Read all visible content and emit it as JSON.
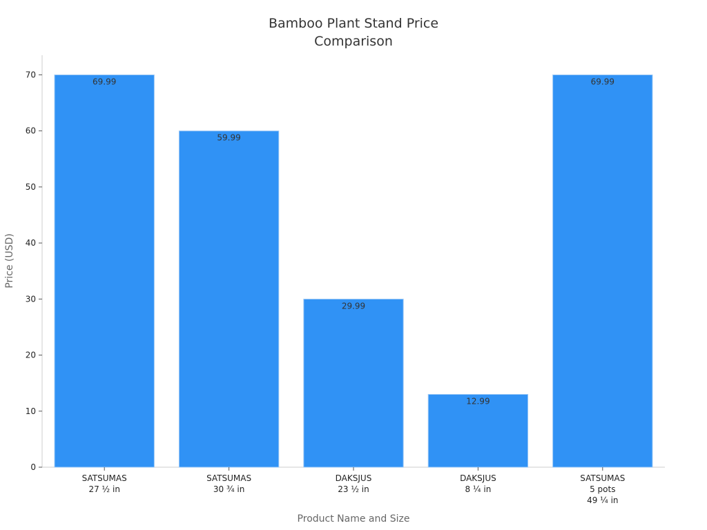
{
  "chart_data": {
    "type": "bar",
    "title": "Bamboo Plant Stand Price\nComparison",
    "x_label": "Product Name and Size",
    "y_label": "Price (USD)",
    "categories": [
      "SATSUMAS\n27 ½ in",
      "SATSUMAS\n30 ¾ in",
      "DAKSJUS\n23 ½ in",
      "DAKSJUS\n8 ¼ in",
      "SATSUMAS\n5 pots\n49 ¼ in"
    ],
    "values": [
      69.99,
      59.99,
      29.99,
      12.99,
      69.99
    ],
    "color": "#3092f5",
    "ylim": [
      0,
      73.5
    ],
    "yticks": [
      0,
      10,
      20,
      30,
      40,
      50,
      60,
      70
    ],
    "grid": false
  }
}
